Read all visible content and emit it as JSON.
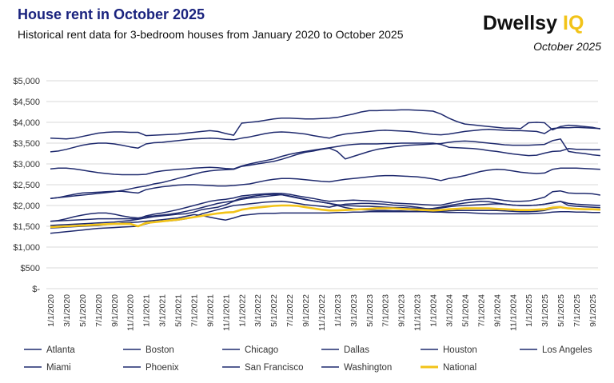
{
  "chart_data": {
    "type": "line",
    "title": "House rent in October 2025",
    "subtitle": "Historical rent data for 3-bedroom houses from January 2020 to October 2025",
    "brand": {
      "name": "Dwellsy",
      "mark": "IQ",
      "date": "October 2025"
    },
    "categories": [
      "1/1/2020",
      null,
      "3/1/2020",
      null,
      "5/1/2020",
      null,
      "7/1/2020",
      null,
      "9/1/2020",
      null,
      "11/1/2020",
      null,
      "1/1/2021",
      null,
      "3/1/2021",
      null,
      "5/1/2021",
      null,
      "7/1/2021",
      null,
      "9/1/2021",
      null,
      "11/1/2021",
      null,
      "1/1/2022",
      null,
      "3/1/2022",
      null,
      "5/1/2022",
      null,
      "7/1/2022",
      null,
      "9/1/2022",
      null,
      "11/1/2022",
      null,
      "1/1/2023",
      null,
      "3/1/2023",
      null,
      "5/1/2023",
      null,
      "7/1/2023",
      null,
      "9/1/2023",
      null,
      "11/1/2023",
      null,
      "1/1/2024",
      null,
      "3/1/2024",
      null,
      "5/1/2024",
      null,
      "7/1/2024",
      null,
      "9/1/2024",
      null,
      "11/1/2024",
      null,
      "1/1/2025",
      null,
      "3/1/2025",
      null,
      "5/1/2025",
      null,
      "7/1/2025",
      null,
      "9/1/2025",
      null
    ],
    "ylim": [
      0,
      5000
    ],
    "yticks": [
      {
        "value": 0,
        "label": "$-"
      },
      {
        "value": 500,
        "label": "$500"
      },
      {
        "value": 1000,
        "label": "$1,000"
      },
      {
        "value": 1500,
        "label": "$1,500"
      },
      {
        "value": 2000,
        "label": "$2,000"
      },
      {
        "value": 2500,
        "label": "$2,500"
      },
      {
        "value": 3000,
        "label": "$3,000"
      },
      {
        "value": 3500,
        "label": "$3,500"
      },
      {
        "value": 4000,
        "label": "$4,000"
      },
      {
        "value": 4500,
        "label": "$4,500"
      },
      {
        "value": 5000,
        "label": "$5,000"
      }
    ],
    "grid": true,
    "legend": "bottom",
    "series": [
      {
        "name": "Atlanta",
        "color": "#1f2a6e",
        "values": [
          1330,
          1350,
          1370,
          1390,
          1410,
          1430,
          1450,
          1460,
          1470,
          1480,
          1490,
          1500,
          1560,
          1600,
          1620,
          1630,
          1650,
          1680,
          1720,
          1800,
          1850,
          1900,
          1950,
          2000,
          2020,
          2040,
          2060,
          2080,
          2090,
          2100,
          2080,
          2050,
          2020,
          2000,
          1980,
          1960,
          2000,
          2030,
          2040,
          2050,
          2050,
          2040,
          2030,
          2010,
          2000,
          1980,
          1960,
          1930,
          1910,
          1940,
          1970,
          1990,
          2000,
          2010,
          2020,
          2030,
          2040,
          2030,
          2010,
          2000,
          2000,
          2010,
          2030,
          2070,
          2100,
          2000,
          1980,
          1970,
          1960,
          1950
        ]
      },
      {
        "name": "Boston",
        "color": "#1f2a6e",
        "values": [
          2880,
          2900,
          2900,
          2880,
          2850,
          2820,
          2790,
          2770,
          2750,
          2740,
          2740,
          2740,
          2750,
          2800,
          2830,
          2850,
          2870,
          2880,
          2900,
          2910,
          2920,
          2910,
          2890,
          2880,
          2950,
          3000,
          3040,
          3080,
          3120,
          3180,
          3230,
          3270,
          3300,
          3330,
          3360,
          3390,
          3420,
          3450,
          3470,
          3480,
          3480,
          3480,
          3490,
          3490,
          3500,
          3500,
          3500,
          3500,
          3500,
          3470,
          3400,
          3390,
          3380,
          3370,
          3350,
          3320,
          3300,
          3270,
          3240,
          3220,
          3200,
          3210,
          3260,
          3300,
          3310,
          3370,
          3350,
          3350,
          3340,
          3340
        ]
      },
      {
        "name": "Chicago",
        "color": "#1f2a6e",
        "values": [
          1620,
          1630,
          1640,
          1650,
          1660,
          1670,
          1680,
          1680,
          1680,
          1680,
          1680,
          1680,
          1750,
          1790,
          1820,
          1860,
          1900,
          1950,
          2000,
          2050,
          2100,
          2130,
          2150,
          2180,
          2230,
          2250,
          2270,
          2280,
          2290,
          2290,
          2270,
          2230,
          2200,
          2170,
          2130,
          2100,
          2110,
          2120,
          2130,
          2120,
          2110,
          2100,
          2080,
          2060,
          2050,
          2040,
          2030,
          2020,
          2010,
          2010,
          2050,
          2090,
          2130,
          2150,
          2160,
          2170,
          2150,
          2120,
          2100,
          2100,
          2110,
          2150,
          2200,
          2330,
          2350,
          2300,
          2290,
          2290,
          2280,
          2250
        ]
      },
      {
        "name": "Dallas",
        "color": "#1f2a6e",
        "values": [
          1620,
          1640,
          1680,
          1730,
          1770,
          1800,
          1820,
          1820,
          1790,
          1750,
          1720,
          1700,
          1730,
          1750,
          1770,
          1790,
          1820,
          1860,
          1900,
          1950,
          2000,
          2050,
          2080,
          2110,
          2180,
          2210,
          2240,
          2260,
          2270,
          2260,
          2220,
          2180,
          2140,
          2110,
          2080,
          2050,
          2020,
          2000,
          1990,
          1980,
          1980,
          1970,
          1960,
          1950,
          1950,
          1940,
          1930,
          1920,
          1930,
          1960,
          2000,
          2030,
          2060,
          2080,
          2100,
          2090,
          2060,
          2030,
          2010,
          2000,
          2000,
          2010,
          2030,
          2060,
          2100,
          2050,
          2030,
          2020,
          2010,
          2000
        ]
      },
      {
        "name": "Houston",
        "color": "#1f2a6e",
        "values": [
          1460,
          1470,
          1480,
          1490,
          1500,
          1510,
          1520,
          1540,
          1560,
          1580,
          1590,
          1600,
          1620,
          1640,
          1660,
          1680,
          1700,
          1740,
          1780,
          1760,
          1720,
          1680,
          1650,
          1700,
          1760,
          1780,
          1800,
          1810,
          1810,
          1820,
          1820,
          1820,
          1820,
          1820,
          1820,
          1820,
          1830,
          1830,
          1840,
          1840,
          1850,
          1850,
          1850,
          1850,
          1850,
          1850,
          1850,
          1850,
          1840,
          1840,
          1830,
          1830,
          1830,
          1820,
          1810,
          1800,
          1800,
          1800,
          1800,
          1800,
          1800,
          1810,
          1820,
          1840,
          1850,
          1850,
          1840,
          1840,
          1830,
          1830
        ]
      },
      {
        "name": "Los Angeles",
        "color": "#1f2a6e",
        "values": [
          3290,
          3310,
          3350,
          3400,
          3450,
          3480,
          3500,
          3500,
          3480,
          3450,
          3410,
          3380,
          3480,
          3510,
          3520,
          3540,
          3560,
          3580,
          3600,
          3610,
          3620,
          3610,
          3590,
          3580,
          3620,
          3650,
          3690,
          3730,
          3760,
          3770,
          3760,
          3740,
          3720,
          3680,
          3650,
          3620,
          3680,
          3720,
          3740,
          3760,
          3780,
          3800,
          3810,
          3800,
          3790,
          3780,
          3760,
          3730,
          3710,
          3700,
          3720,
          3750,
          3780,
          3800,
          3820,
          3830,
          3820,
          3810,
          3800,
          3800,
          3790,
          3780,
          3730,
          3850,
          3870,
          3870,
          3880,
          3870,
          3860,
          3850
        ]
      },
      {
        "name": "Miami",
        "color": "#1f2a6e",
        "values": [
          2170,
          2190,
          2210,
          2230,
          2250,
          2270,
          2290,
          2310,
          2330,
          2360,
          2400,
          2440,
          2470,
          2520,
          2550,
          2600,
          2650,
          2700,
          2750,
          2800,
          2830,
          2850,
          2860,
          2870,
          2940,
          2970,
          3000,
          3030,
          3060,
          3110,
          3170,
          3230,
          3280,
          3310,
          3350,
          3380,
          3300,
          3120,
          3180,
          3240,
          3300,
          3350,
          3380,
          3410,
          3430,
          3450,
          3460,
          3470,
          3480,
          3490,
          3520,
          3540,
          3550,
          3540,
          3520,
          3500,
          3480,
          3460,
          3450,
          3450,
          3450,
          3460,
          3470,
          3560,
          3600,
          3300,
          3270,
          3250,
          3220,
          3200
        ]
      },
      {
        "name": "Phoenix",
        "color": "#1f2a6e",
        "values": [
          1520,
          1530,
          1540,
          1550,
          1560,
          1570,
          1580,
          1590,
          1600,
          1620,
          1640,
          1670,
          1700,
          1730,
          1750,
          1770,
          1790,
          1800,
          1840,
          1900,
          1930,
          1960,
          2020,
          2100,
          2150,
          2180,
          2200,
          2220,
          2240,
          2260,
          2230,
          2190,
          2150,
          2110,
          2080,
          2050,
          2000,
          1950,
          1920,
          1900,
          1890,
          1880,
          1880,
          1870,
          1870,
          1860,
          1860,
          1850,
          1850,
          1860,
          1870,
          1880,
          1880,
          1880,
          1880,
          1880,
          1880,
          1870,
          1860,
          1850,
          1850,
          1860,
          1880,
          1930,
          1950,
          1930,
          1920,
          1910,
          1900,
          1900
        ]
      },
      {
        "name": "San Francisco",
        "color": "#1f2a6e",
        "values": [
          3620,
          3610,
          3600,
          3620,
          3660,
          3700,
          3740,
          3760,
          3770,
          3770,
          3760,
          3760,
          3680,
          3690,
          3700,
          3710,
          3720,
          3740,
          3760,
          3780,
          3800,
          3780,
          3730,
          3690,
          3980,
          4000,
          4020,
          4050,
          4080,
          4100,
          4100,
          4090,
          4080,
          4080,
          4090,
          4100,
          4120,
          4160,
          4200,
          4250,
          4280,
          4280,
          4290,
          4290,
          4300,
          4300,
          4290,
          4280,
          4270,
          4200,
          4100,
          4020,
          3960,
          3940,
          3920,
          3900,
          3880,
          3860,
          3860,
          3850,
          3990,
          4000,
          3990,
          3820,
          3900,
          3930,
          3920,
          3900,
          3880,
          3840
        ]
      },
      {
        "name": "Washington",
        "color": "#1f2a6e",
        "values": [
          2170,
          2190,
          2230,
          2270,
          2300,
          2310,
          2320,
          2330,
          2340,
          2340,
          2320,
          2300,
          2380,
          2420,
          2450,
          2470,
          2490,
          2500,
          2500,
          2490,
          2480,
          2470,
          2470,
          2480,
          2500,
          2520,
          2560,
          2600,
          2630,
          2650,
          2650,
          2640,
          2620,
          2600,
          2580,
          2570,
          2600,
          2630,
          2650,
          2670,
          2690,
          2710,
          2720,
          2720,
          2710,
          2700,
          2690,
          2670,
          2640,
          2600,
          2650,
          2680,
          2720,
          2770,
          2820,
          2850,
          2870,
          2860,
          2830,
          2800,
          2780,
          2770,
          2780,
          2870,
          2900,
          2900,
          2900,
          2890,
          2880,
          2870
        ]
      },
      {
        "name": "National",
        "color": "#f2c318",
        "values": [
          1480,
          1490,
          1500,
          1510,
          1520,
          1530,
          1540,
          1550,
          1560,
          1560,
          1560,
          1500,
          1580,
          1600,
          1620,
          1640,
          1660,
          1690,
          1720,
          1750,
          1780,
          1810,
          1830,
          1840,
          1900,
          1930,
          1950,
          1970,
          1990,
          2000,
          2000,
          1990,
          1960,
          1930,
          1900,
          1880,
          1880,
          1890,
          1900,
          1910,
          1920,
          1930,
          1930,
          1930,
          1920,
          1910,
          1900,
          1890,
          1880,
          1890,
          1910,
          1920,
          1930,
          1930,
          1930,
          1930,
          1920,
          1910,
          1900,
          1890,
          1890,
          1900,
          1910,
          1950,
          1960,
          1930,
          1920,
          1910,
          1910,
          1900
        ]
      }
    ]
  }
}
